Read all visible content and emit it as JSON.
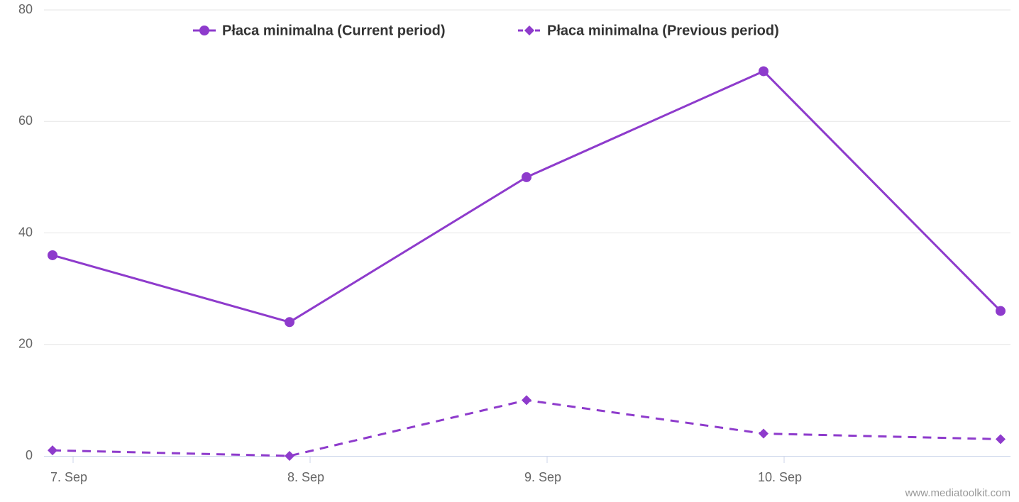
{
  "chart_data": {
    "type": "line",
    "categories": [
      "7. Sep",
      "8. Sep",
      "9. Sep",
      "10. Sep",
      null
    ],
    "series": [
      {
        "name": "Płaca minimalna (Current period)",
        "color": "#8e3bcc",
        "dash": false,
        "marker": "circle",
        "values": [
          36,
          24,
          50,
          69,
          26
        ]
      },
      {
        "name": "Płaca minimalna (Previous period)",
        "color": "#8e3bcc",
        "dash": true,
        "marker": "diamond",
        "values": [
          1,
          0,
          10,
          4,
          3
        ]
      }
    ],
    "ylim": [
      0,
      80
    ],
    "yticks": [
      0,
      20,
      40,
      60,
      80
    ],
    "grid": true,
    "credits": "www.mediatoolkit.com"
  }
}
